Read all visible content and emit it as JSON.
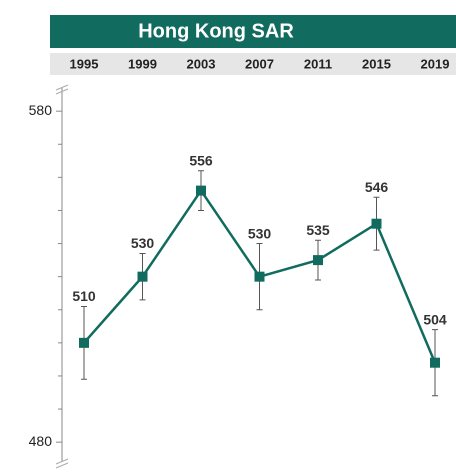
{
  "chart_data": {
    "type": "line",
    "title": "Hong Kong SAR",
    "categories": [
      "1995",
      "1999",
      "2003",
      "2007",
      "2011",
      "2015",
      "2019"
    ],
    "series": [
      {
        "name": "Hong Kong SAR",
        "color": "#116b5f",
        "values": [
          510,
          530,
          556,
          530,
          535,
          546,
          504
        ],
        "errors": [
          11,
          7,
          6,
          10,
          6,
          8,
          10
        ]
      }
    ],
    "ylim": [
      474,
      587
    ],
    "yticks": [
      480,
      580
    ],
    "minor_yticks": [
      490,
      500,
      510,
      520,
      530,
      540,
      550,
      560,
      570
    ]
  }
}
